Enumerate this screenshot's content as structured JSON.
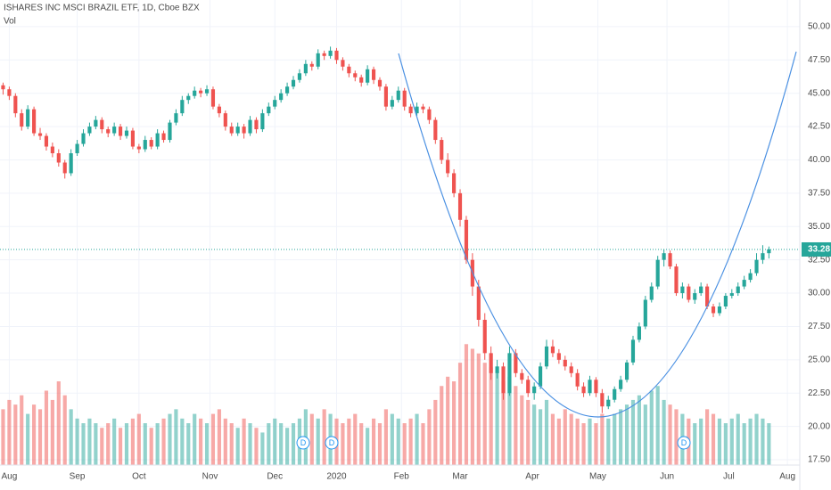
{
  "chart_data": {
    "type": "candlestick",
    "title": "ISHARES INC MSCI BRAZIL ETF, 1D, Cboe BZX",
    "volume_label": "Vol",
    "dividend_label": "D",
    "last_price": 33.28,
    "up_color": "#26a69a",
    "down_color": "#ef5350",
    "line_color": "#4a90e2",
    "grid": true,
    "xlim": [
      -0.5,
      129
    ],
    "xticks": [
      {
        "value": 1,
        "label": "Aug"
      },
      {
        "value": 12,
        "label": "Sep"
      },
      {
        "value": 22,
        "label": "Oct"
      },
      {
        "value": 33.5,
        "label": "Nov"
      },
      {
        "value": 44,
        "label": "Dec"
      },
      {
        "value": 54,
        "label": "2020"
      },
      {
        "value": 64.5,
        "label": "Feb"
      },
      {
        "value": 74,
        "label": "Mar"
      },
      {
        "value": 85.7,
        "label": "Apr"
      },
      {
        "value": 96.3,
        "label": "May"
      },
      {
        "value": 107.5,
        "label": "Jun"
      },
      {
        "value": 117.5,
        "label": "Jul"
      },
      {
        "value": 127,
        "label": "Aug"
      }
    ],
    "ylim": [
      17.1,
      52.0
    ],
    "yticks": [
      {
        "value": 17.5,
        "label": "17.50"
      },
      {
        "value": 20,
        "label": "20.00"
      },
      {
        "value": 22.5,
        "label": "22.50"
      },
      {
        "value": 25,
        "label": "25.00"
      },
      {
        "value": 27.5,
        "label": "27.50"
      },
      {
        "value": 30,
        "label": "30.00"
      },
      {
        "value": 32.5,
        "label": "32.50"
      },
      {
        "value": 35,
        "label": "35.00"
      },
      {
        "value": 37.5,
        "label": "37.50"
      },
      {
        "value": 40,
        "label": "40.00"
      },
      {
        "value": 42.5,
        "label": "42.50"
      },
      {
        "value": 45,
        "label": "45.00"
      },
      {
        "value": 47.5,
        "label": "47.50"
      },
      {
        "value": 50,
        "label": "50.00"
      }
    ],
    "y2lim": [
      0,
      100
    ],
    "open": [
      45.6,
      45.3,
      44.8,
      43.5,
      42.5,
      43.8,
      42.0,
      41.8,
      41.0,
      40.5,
      39.8,
      39.0,
      40.5,
      41.2,
      42.0,
      42.5,
      43.0,
      42.3,
      42.0,
      42.5,
      41.8,
      42.2,
      41.0,
      40.8,
      41.5,
      41.0,
      42.0,
      41.5,
      42.8,
      43.5,
      44.5,
      44.8,
      45.2,
      45.0,
      45.3,
      44.0,
      43.5,
      42.5,
      42.0,
      42.5,
      42.0,
      43.0,
      42.3,
      43.5,
      44.0,
      44.5,
      45.0,
      45.5,
      46.0,
      46.5,
      47.2,
      47.0,
      48.0,
      47.8,
      48.2,
      47.5,
      47.0,
      46.5,
      46.2,
      45.8,
      46.8,
      46.0,
      45.5,
      44.0,
      44.5,
      45.2,
      44.0,
      43.5,
      44.0,
      43.8,
      43.0,
      41.5,
      40.0,
      39.0,
      37.5,
      35.5,
      32.5,
      30.5,
      28.0,
      25.5,
      24.0,
      24.5,
      22.5,
      25.5,
      24.0,
      23.5,
      22.5,
      23.0,
      24.5,
      26.0,
      25.5,
      25.0,
      24.5,
      24.0,
      23.0,
      22.5,
      23.5,
      22.5,
      21.5,
      22.0,
      22.8,
      23.5,
      24.8,
      26.5,
      27.5,
      29.5,
      30.5,
      32.5,
      33.0,
      32.0,
      30.0,
      30.5,
      29.5,
      30.0,
      30.5,
      29.0,
      28.5,
      29.0,
      29.8,
      30.0,
      30.5,
      31.0,
      31.5,
      32.5,
      33.0
    ],
    "high": [
      45.8,
      45.5,
      45.0,
      43.8,
      44.1,
      44.0,
      42.4,
      42.0,
      41.3,
      40.8,
      40.0,
      40.8,
      41.5,
      42.3,
      42.8,
      43.3,
      43.2,
      42.5,
      42.8,
      42.7,
      42.5,
      42.4,
      41.2,
      41.8,
      41.7,
      42.3,
      42.2,
      43.0,
      43.8,
      44.8,
      45.0,
      45.5,
      45.4,
      45.6,
      45.5,
      44.2,
      43.7,
      42.8,
      42.8,
      42.7,
      43.3,
      43.2,
      43.8,
      44.3,
      44.8,
      45.3,
      45.8,
      46.3,
      46.8,
      47.5,
      47.4,
      48.3,
      48.2,
      48.5,
      48.4,
      47.7,
      47.2,
      46.7,
      46.4,
      47.1,
      47.0,
      46.2,
      45.7,
      44.8,
      45.5,
      45.4,
      44.2,
      44.3,
      44.2,
      44.0,
      43.2,
      41.7,
      40.5,
      39.3,
      37.8,
      35.8,
      33.0,
      31.0,
      28.5,
      26.0,
      25.0,
      24.8,
      26.0,
      25.8,
      24.3,
      23.8,
      23.3,
      24.8,
      26.5,
      26.5,
      25.8,
      25.3,
      24.8,
      24.3,
      23.3,
      23.8,
      23.7,
      22.8,
      22.3,
      23.0,
      23.8,
      25.0,
      26.8,
      27.8,
      29.8,
      30.8,
      32.8,
      33.3,
      33.2,
      32.2,
      30.8,
      30.7,
      30.3,
      30.8,
      30.7,
      29.2,
      29.3,
      30.0,
      30.3,
      30.8,
      31.3,
      31.8,
      33.0,
      33.6,
      33.5
    ],
    "low": [
      44.9,
      44.5,
      43.2,
      42.2,
      42.3,
      41.8,
      41.5,
      40.7,
      40.2,
      39.5,
      38.6,
      38.8,
      40.3,
      41.0,
      41.8,
      42.3,
      42.0,
      41.7,
      41.8,
      41.5,
      41.6,
      40.8,
      40.5,
      40.6,
      40.8,
      40.8,
      41.3,
      41.3,
      42.6,
      43.3,
      44.2,
      44.6,
      44.7,
      44.8,
      43.8,
      43.2,
      42.2,
      41.8,
      41.8,
      41.6,
      41.8,
      42.0,
      42.1,
      43.3,
      43.8,
      44.3,
      44.8,
      45.3,
      45.8,
      46.3,
      46.7,
      46.8,
      47.5,
      47.6,
      47.2,
      46.7,
      46.2,
      45.9,
      45.5,
      45.6,
      45.7,
      45.2,
      43.7,
      43.8,
      44.3,
      43.7,
      43.2,
      43.3,
      43.5,
      42.7,
      41.2,
      39.7,
      38.7,
      37.2,
      35.0,
      32.2,
      29.8,
      27.5,
      25.0,
      23.5,
      23.6,
      22.0,
      22.3,
      23.7,
      23.2,
      22.2,
      22.0,
      22.8,
      24.3,
      25.2,
      24.7,
      24.2,
      23.7,
      22.7,
      22.2,
      22.3,
      22.2,
      21.0,
      21.3,
      21.8,
      22.6,
      23.3,
      24.6,
      26.3,
      27.3,
      29.3,
      30.3,
      32.0,
      31.8,
      29.8,
      29.6,
      29.3,
      29.2,
      29.8,
      28.8,
      28.2,
      28.3,
      28.8,
      29.6,
      29.8,
      30.3,
      30.8,
      31.3,
      32.2,
      32.6
    ],
    "close": [
      45.3,
      44.8,
      43.5,
      42.5,
      43.8,
      42.0,
      41.8,
      41.0,
      40.5,
      39.8,
      39.0,
      40.5,
      41.2,
      42.0,
      42.5,
      43.0,
      42.3,
      42.0,
      42.5,
      41.8,
      42.2,
      41.0,
      40.8,
      41.5,
      41.0,
      42.0,
      41.5,
      42.8,
      43.5,
      44.5,
      44.8,
      45.2,
      45.0,
      45.3,
      44.0,
      43.5,
      42.5,
      42.0,
      42.5,
      42.0,
      43.0,
      42.3,
      43.5,
      44.0,
      44.5,
      45.0,
      45.5,
      46.0,
      46.5,
      47.2,
      47.0,
      48.0,
      47.8,
      48.2,
      47.5,
      47.0,
      46.5,
      46.2,
      45.8,
      46.8,
      46.0,
      45.5,
      44.0,
      44.5,
      45.2,
      44.0,
      43.5,
      44.0,
      43.8,
      43.0,
      41.5,
      40.0,
      39.0,
      37.5,
      35.5,
      32.5,
      30.5,
      28.0,
      25.5,
      24.0,
      24.5,
      22.5,
      25.5,
      24.0,
      23.5,
      22.5,
      23.0,
      24.5,
      26.0,
      25.5,
      25.0,
      24.5,
      24.0,
      23.0,
      22.5,
      23.5,
      22.5,
      21.5,
      22.0,
      22.8,
      23.5,
      24.8,
      26.5,
      27.5,
      29.5,
      30.5,
      32.5,
      33.0,
      32.0,
      30.0,
      30.5,
      29.5,
      30.0,
      30.5,
      29.0,
      28.5,
      29.0,
      29.8,
      30.0,
      30.5,
      31.0,
      31.5,
      32.5,
      33.0,
      33.28
    ],
    "volume": [
      12,
      14,
      13,
      15,
      11,
      13,
      12,
      16,
      14,
      18,
      15,
      12,
      10,
      9,
      10,
      9,
      8,
      9,
      10,
      8,
      9,
      10,
      11,
      9,
      8,
      9,
      10,
      11,
      12,
      10,
      9,
      11,
      10,
      9,
      11,
      12,
      10,
      9,
      8,
      10,
      9,
      8,
      7,
      9,
      10,
      9,
      8,
      9,
      10,
      12,
      11,
      10,
      12,
      11,
      10,
      9,
      10,
      11,
      9,
      8,
      10,
      9,
      12,
      11,
      10,
      9,
      10,
      11,
      9,
      12,
      14,
      17,
      19,
      18,
      22,
      26,
      25,
      24,
      22,
      21,
      20,
      18,
      19,
      17,
      15,
      14,
      13,
      12,
      14,
      11,
      10,
      12,
      11,
      10,
      9,
      10,
      9,
      11,
      10,
      11,
      12,
      13,
      14,
      15,
      13,
      16,
      17,
      14,
      13,
      12,
      11,
      10,
      9,
      10,
      12,
      11,
      10,
      9,
      10,
      11,
      9,
      10,
      11,
      10,
      9
    ]
  }
}
